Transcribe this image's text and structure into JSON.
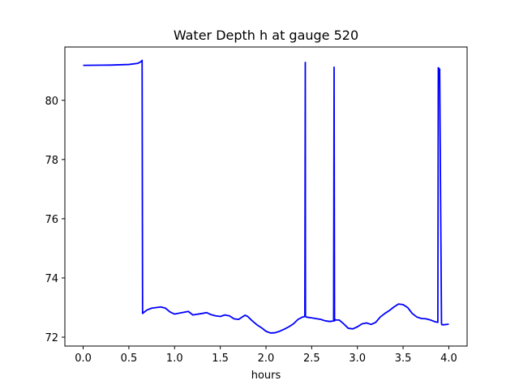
{
  "chart_data": {
    "type": "line",
    "title": "Water Depth h at gauge 520",
    "xlabel": "hours",
    "ylabel": "",
    "xlim": [
      -0.2,
      4.2
    ],
    "ylim": [
      71.7,
      81.8
    ],
    "xticks": [
      0.0,
      0.5,
      1.0,
      1.5,
      2.0,
      2.5,
      3.0,
      3.5,
      4.0
    ],
    "xtick_labels": [
      "0.0",
      "0.5",
      "1.0",
      "1.5",
      "2.0",
      "2.5",
      "3.0",
      "3.5",
      "4.0"
    ],
    "yticks": [
      72,
      74,
      76,
      78,
      80
    ],
    "ytick_labels": [
      "72",
      "74",
      "76",
      "78",
      "80"
    ],
    "grid": false,
    "series": [
      {
        "color": "#0000ff",
        "x": [
          0.0,
          0.3,
          0.5,
          0.6,
          0.63,
          0.645,
          0.65,
          0.66,
          0.7,
          0.75,
          0.85,
          0.9,
          0.95,
          1.0,
          1.1,
          1.15,
          1.2,
          1.3,
          1.35,
          1.4,
          1.45,
          1.5,
          1.55,
          1.6,
          1.65,
          1.7,
          1.77,
          1.8,
          1.85,
          1.9,
          1.95,
          2.0,
          2.05,
          2.1,
          2.15,
          2.2,
          2.25,
          2.3,
          2.35,
          2.4,
          2.425,
          2.43,
          2.432,
          2.44,
          2.5,
          2.6,
          2.65,
          2.7,
          2.74,
          2.745,
          2.75,
          2.755,
          2.76,
          2.8,
          2.85,
          2.9,
          2.95,
          3.0,
          3.05,
          3.1,
          3.15,
          3.2,
          3.25,
          3.3,
          3.35,
          3.4,
          3.45,
          3.5,
          3.55,
          3.6,
          3.65,
          3.7,
          3.75,
          3.8,
          3.85,
          3.88,
          3.885,
          3.9,
          3.92,
          3.925,
          3.95,
          4.0
        ],
        "y": [
          81.18,
          81.19,
          81.21,
          81.25,
          81.3,
          81.35,
          72.8,
          72.83,
          72.92,
          72.98,
          73.02,
          72.98,
          72.85,
          72.78,
          72.84,
          72.87,
          72.75,
          72.8,
          72.83,
          72.76,
          72.72,
          72.7,
          72.75,
          72.72,
          72.62,
          72.6,
          72.74,
          72.7,
          72.55,
          72.42,
          72.32,
          72.2,
          72.14,
          72.15,
          72.2,
          72.27,
          72.35,
          72.45,
          72.6,
          72.68,
          72.7,
          81.28,
          72.7,
          72.68,
          72.65,
          72.6,
          72.55,
          72.53,
          72.55,
          81.12,
          72.55,
          72.6,
          72.58,
          72.58,
          72.45,
          72.3,
          72.28,
          72.35,
          72.45,
          72.48,
          72.43,
          72.5,
          72.68,
          72.8,
          72.9,
          73.02,
          73.12,
          73.1,
          73.0,
          72.8,
          72.68,
          72.63,
          72.62,
          72.58,
          72.52,
          72.5,
          81.1,
          81.05,
          72.45,
          72.42,
          72.42,
          72.44
        ]
      }
    ]
  }
}
